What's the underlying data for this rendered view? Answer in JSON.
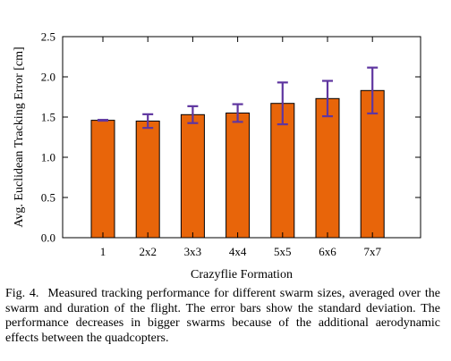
{
  "chart_data": {
    "type": "bar",
    "title": "",
    "xlabel": "Crazyflie Formation",
    "ylabel": "Avg. Euclidean Tracking Error [cm]",
    "categories": [
      "1",
      "2x2",
      "3x3",
      "4x4",
      "5x5",
      "6x6",
      "7x7"
    ],
    "values": [
      1.46,
      1.45,
      1.53,
      1.55,
      1.67,
      1.73,
      1.83
    ],
    "error": [
      0.005,
      0.085,
      0.105,
      0.11,
      0.26,
      0.22,
      0.285
    ],
    "ylim": [
      0,
      2.5
    ],
    "yticks": [
      "0.0",
      "0.5",
      "1.0",
      "1.5",
      "2.0",
      "2.5"
    ],
    "ytick_values": [
      0,
      0.5,
      1.0,
      1.5,
      2.0,
      2.5
    ],
    "grid": false,
    "legend": "none",
    "colors": {
      "bar_fill": "#e8650a",
      "bar_edge": "#000000",
      "error_bar": "#5f36a0",
      "axis": "#000000"
    }
  },
  "caption": {
    "label": "Fig. 4.",
    "text": "Measured tracking performance for different swarm sizes, averaged over the swarm and duration of the flight. The error bars show the standard deviation. The performance decreases in bigger swarms because of the additional aerodynamic effects between the quadcopters."
  }
}
